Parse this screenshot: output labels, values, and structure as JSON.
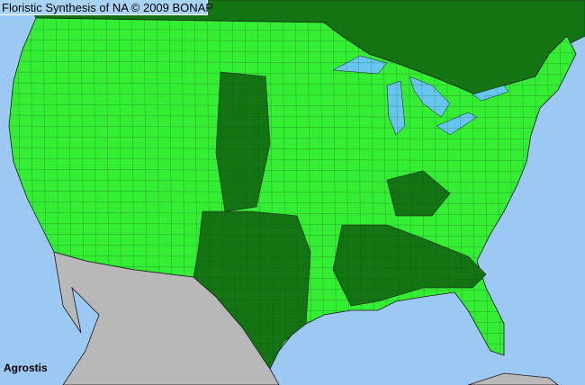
{
  "title": "Floristic Synthesis of NA © 2009 BONAP",
  "taxon": "Agrostis",
  "colors": {
    "ocean": "#9cc8f4",
    "present_native": "#33ee33",
    "present_state_not_county": "#127512",
    "not_in_area": "#b8b8b8",
    "lakes": "#66c6f0",
    "borders": "#1a1a1a"
  }
}
